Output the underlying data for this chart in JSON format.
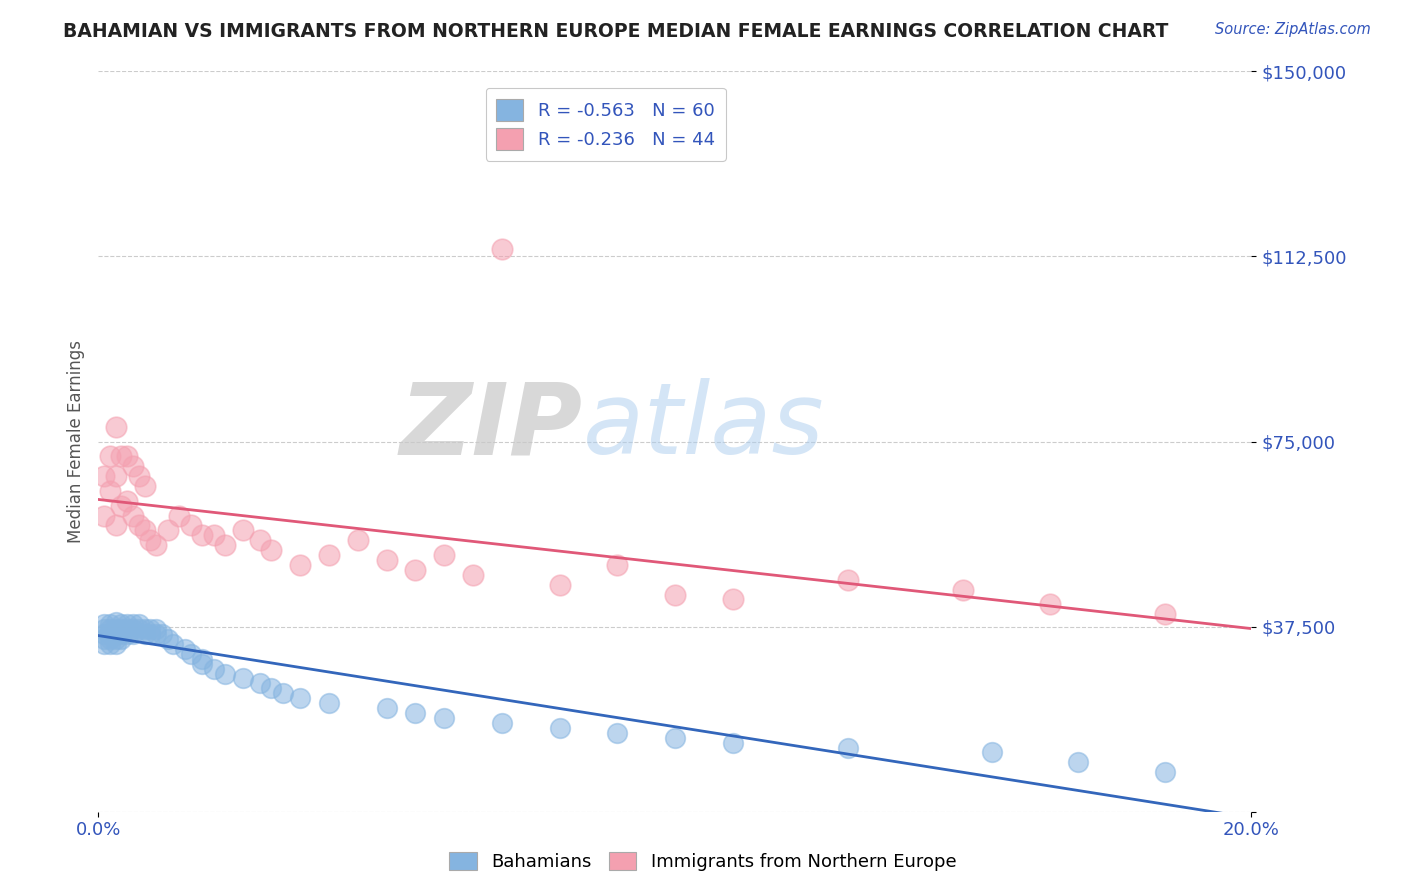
{
  "title": "BAHAMIAN VS IMMIGRANTS FROM NORTHERN EUROPE MEDIAN FEMALE EARNINGS CORRELATION CHART",
  "source": "Source: ZipAtlas.com",
  "ylabel": "Median Female Earnings",
  "ytick_vals": [
    0,
    37500,
    75000,
    112500,
    150000
  ],
  "ytick_labels": [
    "",
    "$37,500",
    "$75,000",
    "$112,500",
    "$150,000"
  ],
  "xlim": [
    0.0,
    0.2
  ],
  "ylim": [
    0,
    150000
  ],
  "blue_color": "#85B4E0",
  "pink_color": "#F4A0B0",
  "blue_line_color": "#3366BB",
  "pink_line_color": "#E05878",
  "title_color": "#222222",
  "axis_label_color": "#3355BB",
  "grid_color": "#CCCCCC",
  "background_color": "#FFFFFF",
  "legend_label1": "R = -0.563   N = 60",
  "legend_label2": "R = -0.236   N = 44",
  "bottom_legend1": "Bahamians",
  "bottom_legend2": "Immigrants from Northern Europe",
  "bahamians_x": [
    0.001,
    0.001,
    0.001,
    0.001,
    0.001,
    0.002,
    0.002,
    0.002,
    0.002,
    0.002,
    0.003,
    0.003,
    0.003,
    0.003,
    0.003,
    0.004,
    0.004,
    0.004,
    0.004,
    0.005,
    0.005,
    0.005,
    0.006,
    0.006,
    0.006,
    0.007,
    0.007,
    0.008,
    0.008,
    0.009,
    0.009,
    0.01,
    0.01,
    0.011,
    0.012,
    0.013,
    0.015,
    0.016,
    0.018,
    0.018,
    0.02,
    0.022,
    0.025,
    0.028,
    0.03,
    0.032,
    0.035,
    0.04,
    0.05,
    0.055,
    0.06,
    0.07,
    0.08,
    0.09,
    0.1,
    0.11,
    0.13,
    0.155,
    0.17,
    0.185
  ],
  "bahamians_y": [
    38000,
    37000,
    36000,
    35000,
    34000,
    38000,
    37000,
    36000,
    35000,
    34000,
    38500,
    37000,
    36000,
    35000,
    34000,
    38000,
    37000,
    36000,
    35000,
    38000,
    37000,
    36000,
    38000,
    37000,
    36000,
    38000,
    37000,
    37000,
    36000,
    37000,
    36000,
    37000,
    36000,
    36000,
    35000,
    34000,
    33000,
    32000,
    31000,
    30000,
    29000,
    28000,
    27000,
    26000,
    25000,
    24000,
    23000,
    22000,
    21000,
    20000,
    19000,
    18000,
    17000,
    16000,
    15000,
    14000,
    13000,
    12000,
    10000,
    8000
  ],
  "northern_europe_x": [
    0.001,
    0.001,
    0.002,
    0.002,
    0.003,
    0.003,
    0.003,
    0.004,
    0.004,
    0.005,
    0.005,
    0.006,
    0.006,
    0.007,
    0.007,
    0.008,
    0.008,
    0.009,
    0.01,
    0.012,
    0.014,
    0.016,
    0.018,
    0.02,
    0.022,
    0.025,
    0.028,
    0.03,
    0.035,
    0.04,
    0.045,
    0.05,
    0.055,
    0.06,
    0.065,
    0.07,
    0.08,
    0.09,
    0.1,
    0.11,
    0.13,
    0.15,
    0.165,
    0.185
  ],
  "northern_europe_y": [
    68000,
    60000,
    72000,
    65000,
    78000,
    68000,
    58000,
    72000,
    62000,
    72000,
    63000,
    70000,
    60000,
    68000,
    58000,
    66000,
    57000,
    55000,
    54000,
    57000,
    60000,
    58000,
    56000,
    56000,
    54000,
    57000,
    55000,
    53000,
    50000,
    52000,
    55000,
    51000,
    49000,
    52000,
    48000,
    114000,
    46000,
    50000,
    44000,
    43000,
    47000,
    45000,
    42000,
    40000
  ]
}
